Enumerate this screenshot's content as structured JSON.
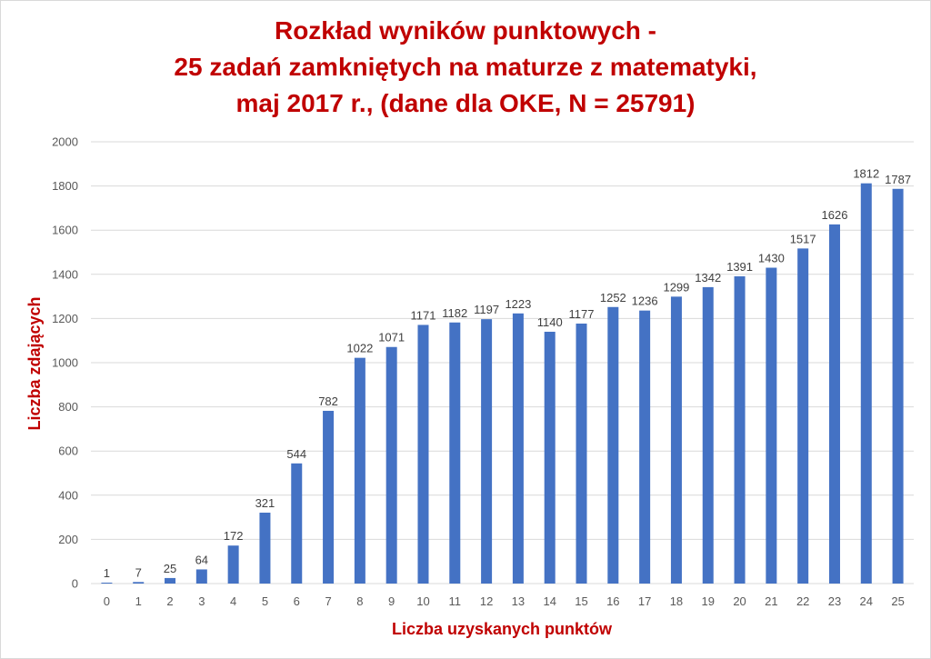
{
  "chart_data": {
    "type": "bar",
    "title_lines": [
      "Rozkład wyników punktowych -",
      "25 zadań zamkniętych na maturze z matematyki,",
      "maj 2017 r., (dane dla OKE, N = 25791)"
    ],
    "xlabel": "Liczba uzyskanych punktów",
    "ylabel": "Liczba zdających",
    "categories": [
      "0",
      "1",
      "2",
      "3",
      "4",
      "5",
      "6",
      "7",
      "8",
      "9",
      "10",
      "11",
      "12",
      "13",
      "14",
      "15",
      "16",
      "17",
      "18",
      "19",
      "20",
      "21",
      "22",
      "23",
      "24",
      "25"
    ],
    "values": [
      1,
      7,
      25,
      64,
      172,
      321,
      544,
      782,
      1022,
      1071,
      1171,
      1182,
      1197,
      1223,
      1140,
      1177,
      1252,
      1236,
      1299,
      1342,
      1391,
      1430,
      1517,
      1626,
      1812,
      1787
    ],
    "ylim": [
      0,
      2000
    ],
    "yticks": [
      0,
      200,
      400,
      600,
      800,
      1000,
      1200,
      1400,
      1600,
      1800,
      2000
    ],
    "grid": true,
    "legend": "none",
    "colors": {
      "bar": "#4472c4",
      "title": "#c00000",
      "grid": "#d9d9d9"
    }
  }
}
